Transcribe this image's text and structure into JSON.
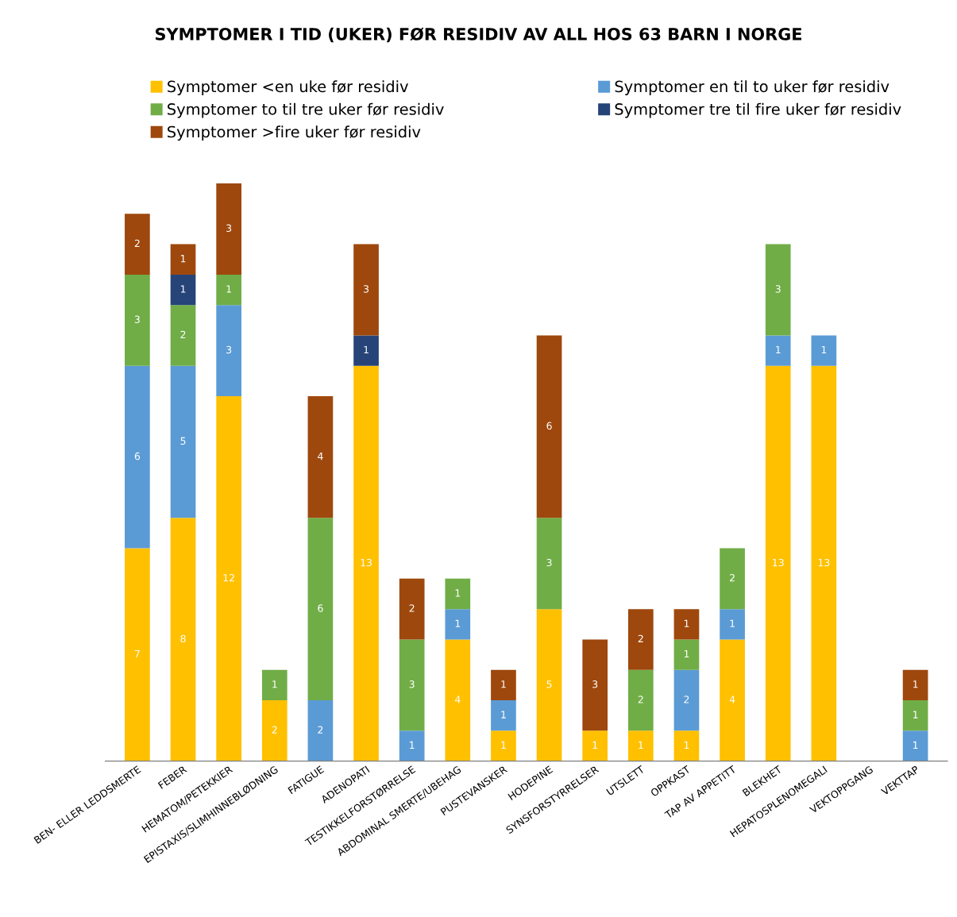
{
  "chart_data": {
    "type": "bar",
    "stacked": true,
    "data_labels": true,
    "legend": "top",
    "grid": false,
    "title": "SYMPTOMER I TID (UKER) FØR RESIDIV AV ALL HOS 63 BARN I NORGE",
    "categories": [
      "BEN- ELLER LEDDSMERTE",
      "FEBER",
      "HEMATOM/PETEKKIER",
      "EPISTAXIS/SLIMHINNEBLØDNING",
      "FATIGUE",
      "ADENOPATI",
      "TESTIKKELFORSTØRRELSE",
      "ABDOMINAL SMERTE/UBEHAG",
      "PUSTEVANSKER",
      "HODEPINE",
      "SYNSFORSTYRRELSER",
      "UTSLETT",
      "OPPKAST",
      "TAP AV APPETITT",
      "BLEKHET",
      "HEPATOSPLENOMEGALI",
      "VEKTOPPGANG",
      "VEKTTAP"
    ],
    "series": [
      {
        "name": "Symptomer <en uke før residiv",
        "color": "#ffc000",
        "values": [
          7,
          8,
          12,
          2,
          null,
          13,
          null,
          4,
          1,
          5,
          1,
          1,
          1,
          4,
          13,
          13,
          null,
          null
        ]
      },
      {
        "name": "Symptomer en til to uker før residiv",
        "color": "#5b9bd5",
        "values": [
          6,
          5,
          3,
          null,
          2,
          null,
          1,
          1,
          1,
          null,
          null,
          null,
          2,
          1,
          1,
          1,
          null,
          1
        ]
      },
      {
        "name": "Symptomer to til tre uker før residiv",
        "color": "#70ad47",
        "values": [
          3,
          2,
          1,
          1,
          6,
          null,
          3,
          1,
          null,
          3,
          null,
          2,
          1,
          2,
          3,
          null,
          null,
          1
        ]
      },
      {
        "name": "Symptomer tre til fire uker før residiv",
        "color": "#264478",
        "values": [
          null,
          1,
          null,
          null,
          null,
          1,
          null,
          null,
          null,
          null,
          null,
          null,
          null,
          null,
          null,
          null,
          null,
          null
        ]
      },
      {
        "name": "Symptomer >fire uker før residiv",
        "color": "#9e480e",
        "values": [
          2,
          1,
          3,
          null,
          4,
          3,
          2,
          null,
          1,
          6,
          3,
          2,
          1,
          null,
          null,
          null,
          null,
          1
        ]
      }
    ]
  }
}
